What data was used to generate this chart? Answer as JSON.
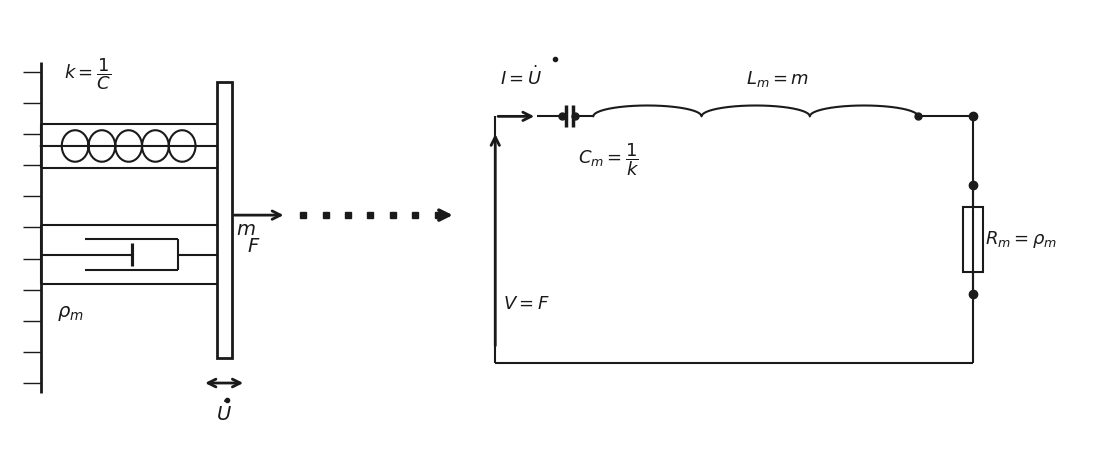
{
  "bg_color": "#ffffff",
  "line_color": "#1a1a1a",
  "fig_width": 10.95,
  "fig_height": 4.5,
  "dpi": 100
}
